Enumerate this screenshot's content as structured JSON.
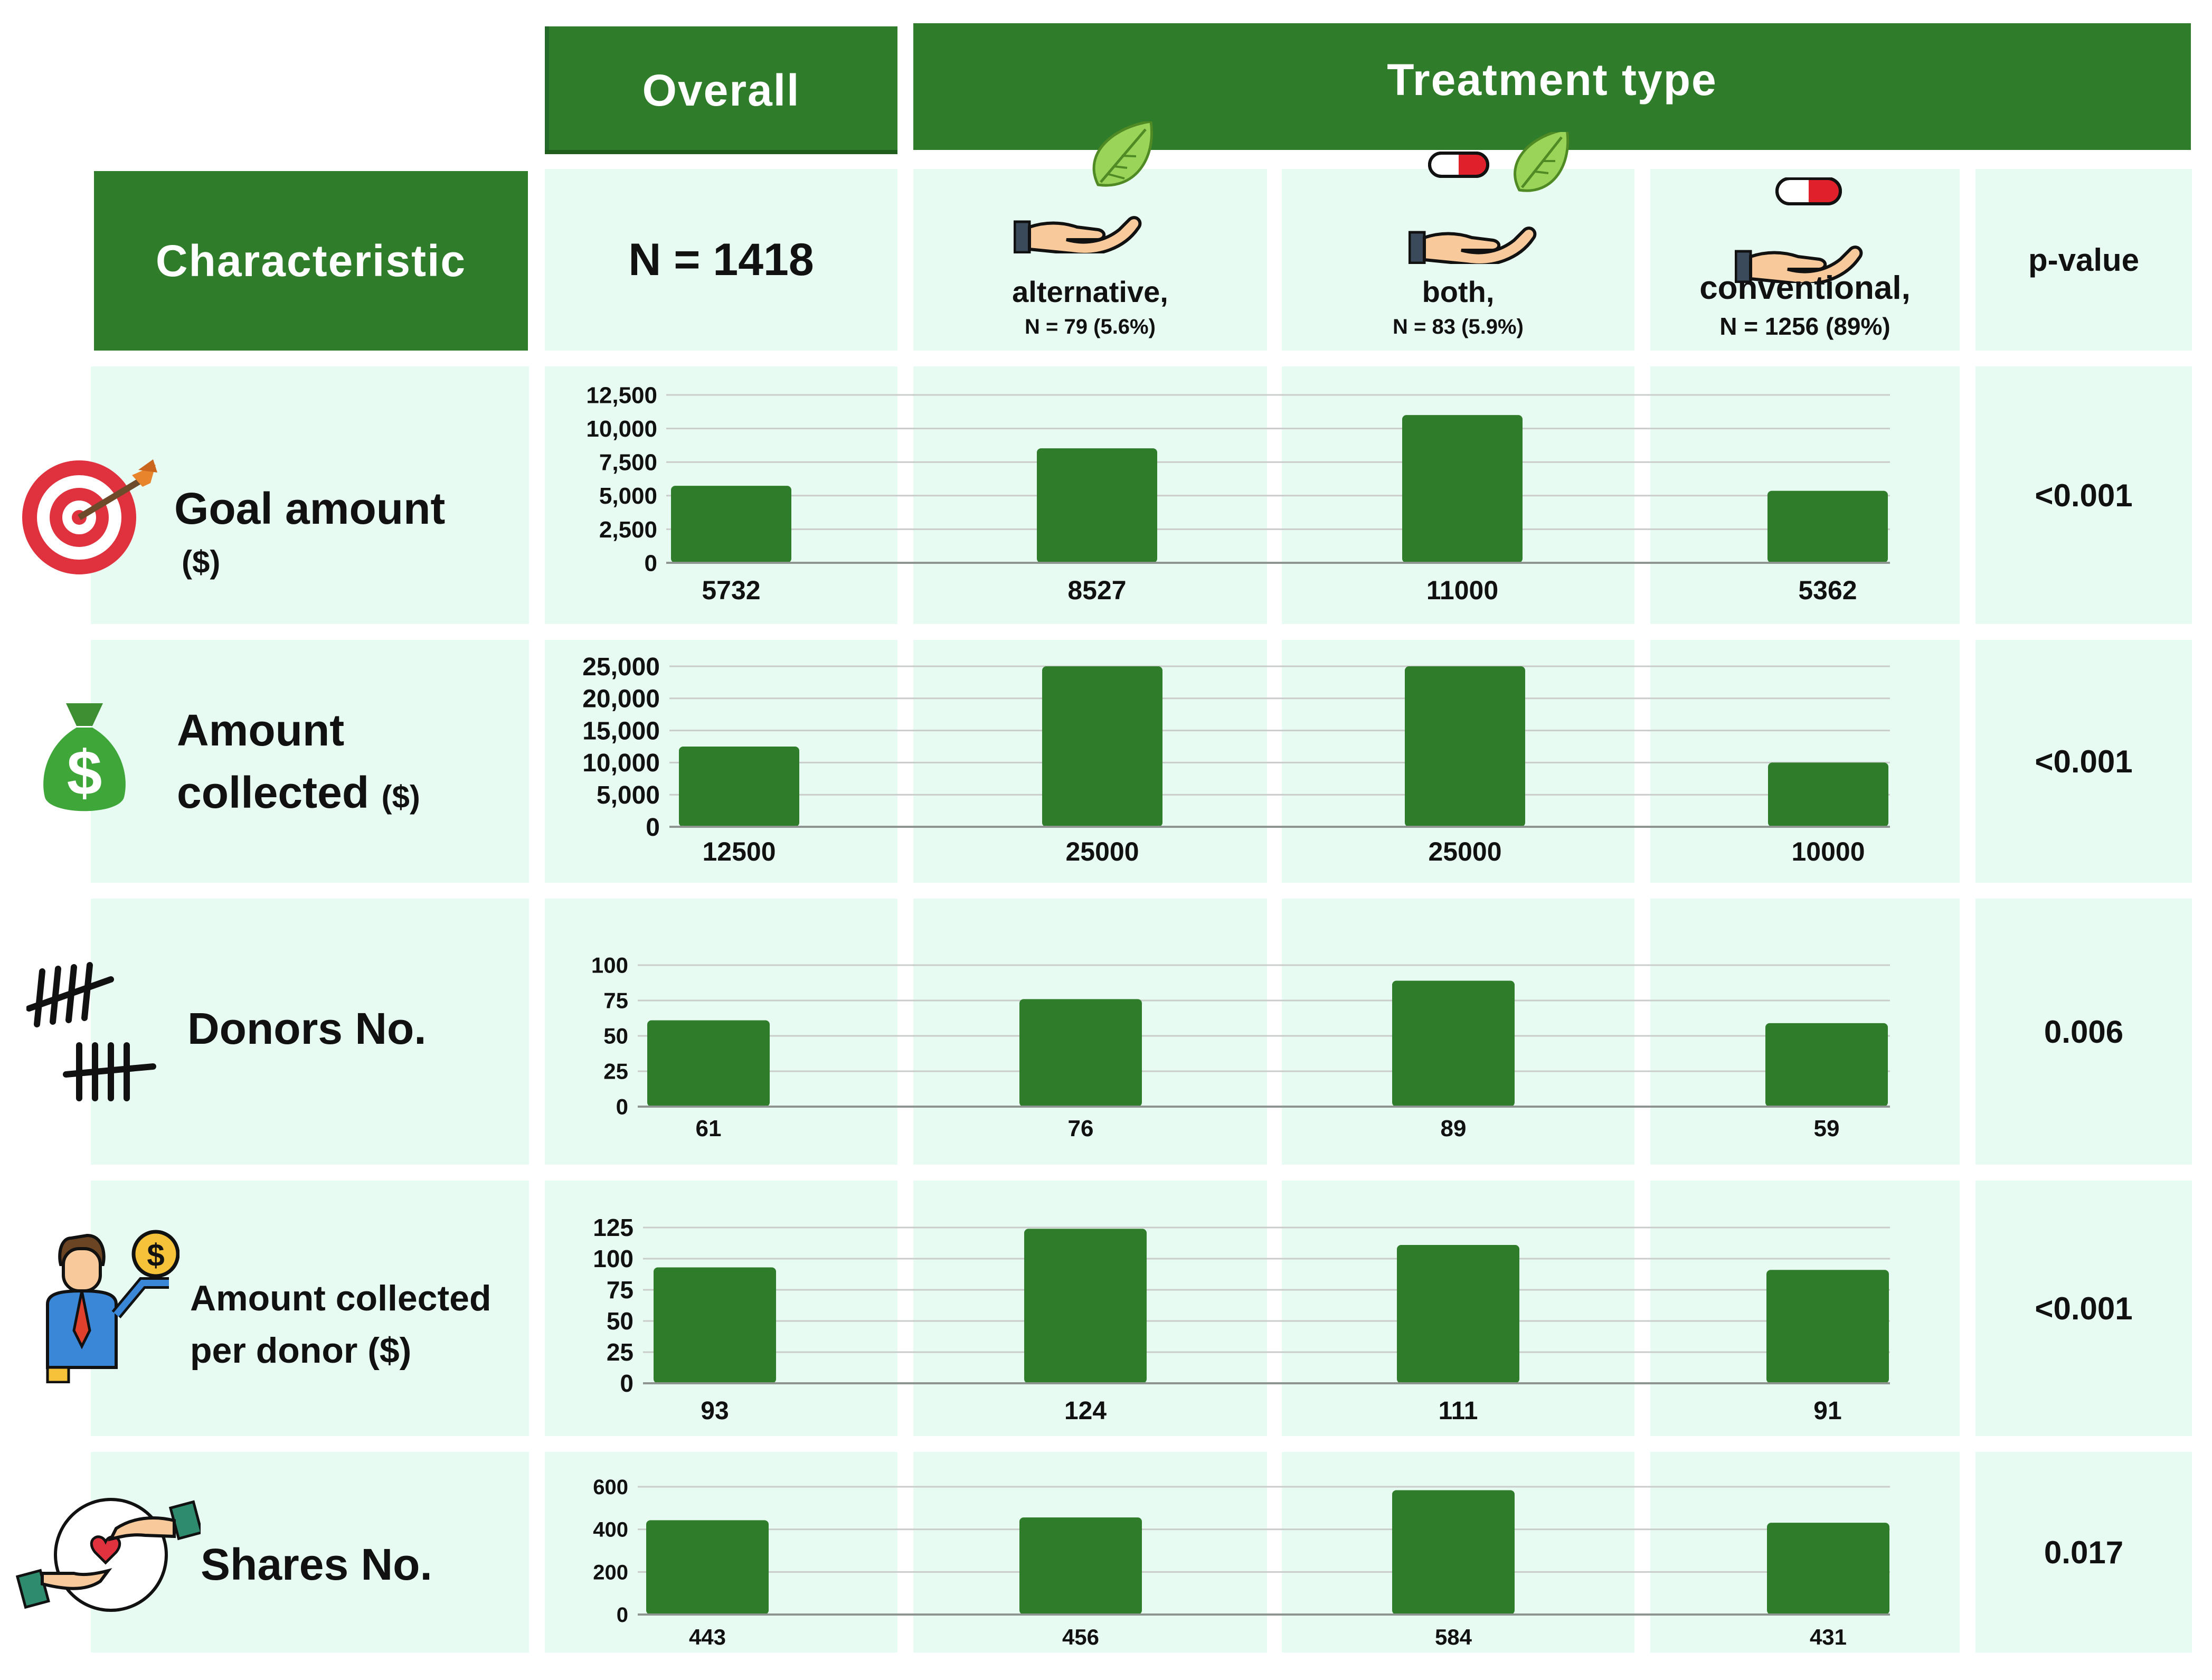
{
  "header": {
    "overall": "Overall",
    "treatment_type": "Treatment type",
    "characteristic": "Characteristic",
    "n_total": "N = 1418",
    "pvalue": "p-value",
    "groups": [
      {
        "name": "alternative,",
        "n": "N = 79 (5.6%)"
      },
      {
        "name": "both,",
        "n": "N = 83 (5.9%)"
      },
      {
        "name": "conventional,",
        "n": "N = 1256 (89%)"
      }
    ]
  },
  "rows": [
    {
      "label_line1": "Goal amount",
      "label_line2": "($)",
      "pvalue": "<0.001"
    },
    {
      "label_line1": "Amount",
      "label_line2": "collected",
      "label_unit": "($)",
      "pvalue": "<0.001"
    },
    {
      "label_line1": "Donors No.",
      "pvalue": "0.006"
    },
    {
      "label_line1": "Amount collected",
      "label_line2": "per donor ($)",
      "pvalue": "<0.001"
    },
    {
      "label_line1": "Shares No.",
      "pvalue": "0.017"
    }
  ],
  "colors": {
    "bar": "#2f7d2a",
    "header": "#2f7d2a",
    "cell": "#e8fbf3",
    "grid": "#c9ccca"
  },
  "chart_data": [
    {
      "type": "bar",
      "title": "Goal amount ($)",
      "categories": [
        "Overall",
        "alternative",
        "both",
        "conventional"
      ],
      "values": [
        5732,
        8527,
        11000,
        5362
      ],
      "value_labels": [
        "5732",
        "8527",
        "11000",
        "5362"
      ],
      "ylim": [
        0,
        12500
      ],
      "ticks": [
        0,
        2500,
        5000,
        7500,
        10000,
        12500
      ],
      "tick_labels": [
        "0",
        "2,500",
        "5,000",
        "7,500",
        "10,000",
        "12,500"
      ]
    },
    {
      "type": "bar",
      "title": "Amount collected ($)",
      "categories": [
        "Overall",
        "alternative",
        "both",
        "conventional"
      ],
      "values": [
        12500,
        25000,
        25000,
        10000
      ],
      "value_labels": [
        "12500",
        "25000",
        "25000",
        "10000"
      ],
      "ylim": [
        0,
        25000
      ],
      "ticks": [
        0,
        5000,
        10000,
        15000,
        20000,
        25000
      ],
      "tick_labels": [
        "0",
        "5,000",
        "10,000",
        "15,000",
        "20,000",
        "25,000"
      ]
    },
    {
      "type": "bar",
      "title": "Donors No.",
      "categories": [
        "Overall",
        "alternative",
        "both",
        "conventional"
      ],
      "values": [
        61,
        76,
        89,
        59
      ],
      "value_labels": [
        "61",
        "76",
        "89",
        "59"
      ],
      "ylim": [
        0,
        100
      ],
      "ticks": [
        0,
        25,
        50,
        75,
        100
      ],
      "tick_labels": [
        "0",
        "25",
        "50",
        "75",
        "100"
      ]
    },
    {
      "type": "bar",
      "title": "Amount collected per donor ($)",
      "categories": [
        "Overall",
        "alternative",
        "both",
        "conventional"
      ],
      "values": [
        93,
        124,
        111,
        91
      ],
      "value_labels": [
        "93",
        "124",
        "111",
        "91"
      ],
      "ylim": [
        0,
        125
      ],
      "ticks": [
        0,
        25,
        50,
        75,
        100,
        125
      ],
      "tick_labels": [
        "0",
        "25",
        "50",
        "75",
        "100",
        "125"
      ]
    },
    {
      "type": "bar",
      "title": "Shares No.",
      "categories": [
        "Overall",
        "alternative",
        "both",
        "conventional"
      ],
      "values": [
        443,
        456,
        584,
        431
      ],
      "value_labels": [
        "443",
        "456",
        "584",
        "431"
      ],
      "ylim": [
        0,
        600
      ],
      "ticks": [
        0,
        200,
        400,
        600
      ],
      "tick_labels": [
        "0",
        "200",
        "400",
        "600"
      ]
    }
  ]
}
